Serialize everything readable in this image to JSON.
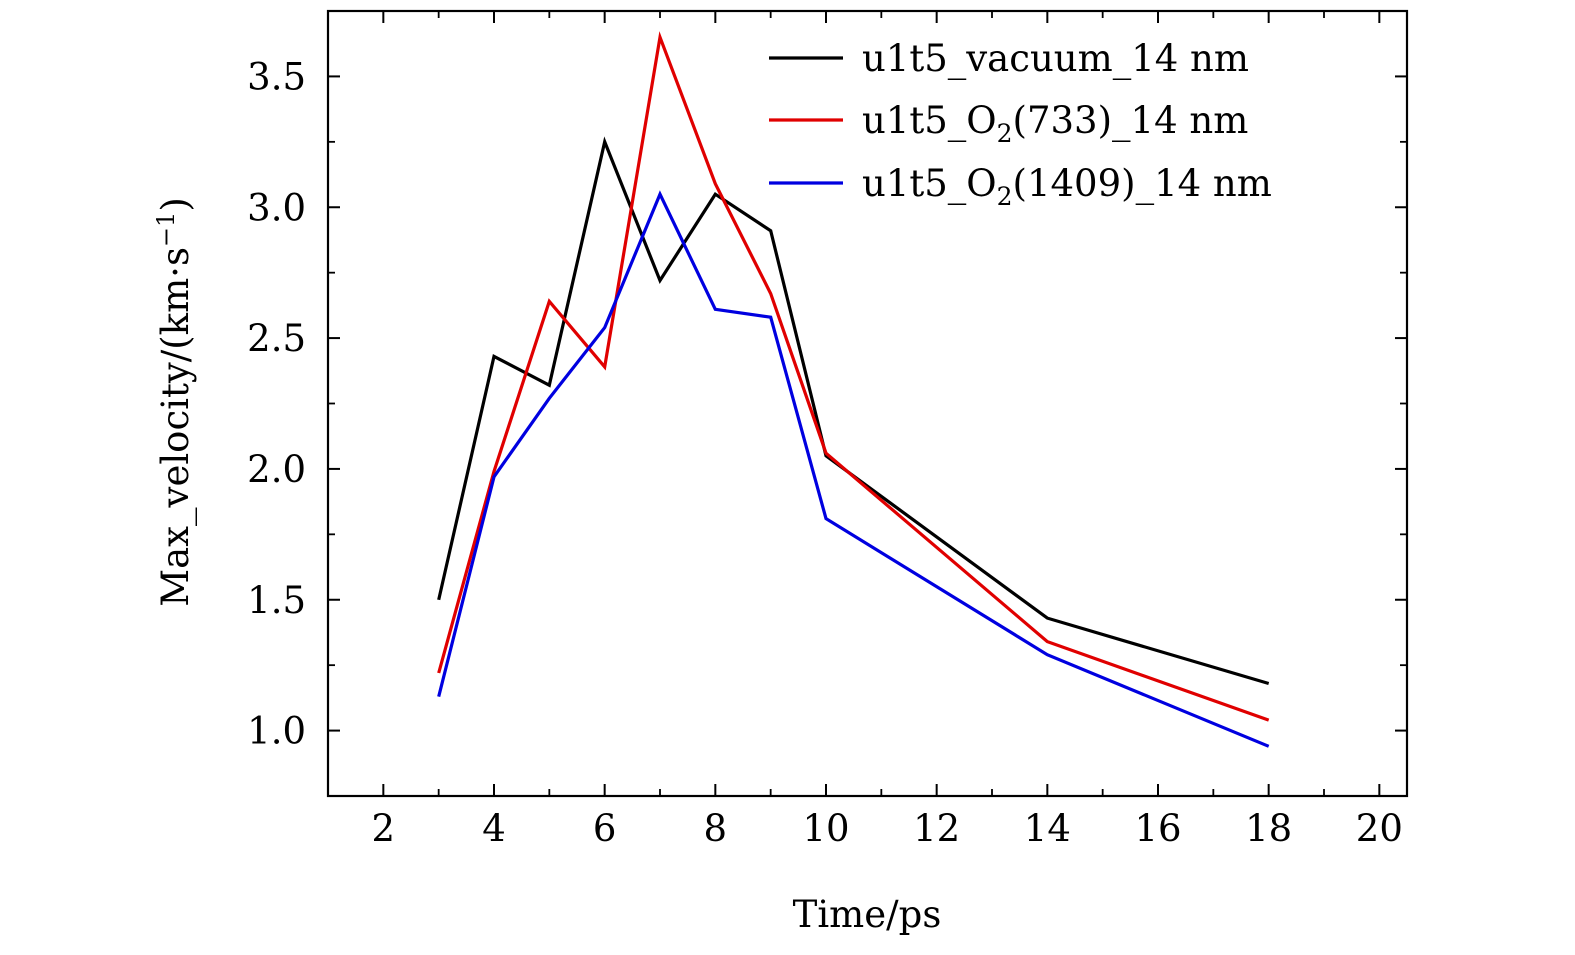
{
  "chart_data": {
    "type": "line",
    "title": "",
    "xlabel": "Time/ps",
    "ylabel": "Max_velocity/(km·s",
    "ylabel_sup": "−1",
    "ylabel_end": ")",
    "xlim": [
      1,
      20.5
    ],
    "ylim": [
      0.75,
      3.75
    ],
    "xticks": [
      2,
      4,
      6,
      8,
      10,
      12,
      14,
      16,
      18,
      20
    ],
    "yticks": [
      1.0,
      1.5,
      2.0,
      2.5,
      3.0,
      3.5
    ],
    "yticklabels": [
      "1.0",
      "1.5",
      "2.0",
      "2.5",
      "3.0",
      "3.5"
    ],
    "grid": false,
    "legend_position": "top-right",
    "series": [
      {
        "name": "u1t5_vacuum_14 nm",
        "label_pre": "u1t5_vacuum_14 nm",
        "label_sub": "",
        "label_post": "",
        "color": "#000000",
        "x": [
          3,
          4,
          5,
          6,
          7,
          8,
          9,
          10,
          14,
          18
        ],
        "y": [
          1.5,
          2.43,
          2.32,
          3.25,
          2.72,
          3.05,
          2.91,
          2.05,
          1.43,
          1.18
        ]
      },
      {
        "name": "u1t5_O2(733)_14 nm",
        "label_pre": "u1t5_O",
        "label_sub": "2",
        "label_post": "(733)_14 nm",
        "color": "#e00000",
        "x": [
          3,
          4,
          5,
          6,
          7,
          8,
          9,
          10,
          14,
          18
        ],
        "y": [
          1.22,
          1.99,
          2.64,
          2.39,
          3.65,
          3.09,
          2.67,
          2.06,
          1.34,
          1.04
        ]
      },
      {
        "name": "u1t5_O2(1409)_14 nm",
        "label_pre": "u1t5_O",
        "label_sub": "2",
        "label_post": "(1409)_14 nm",
        "color": "#0000e0",
        "x": [
          3,
          4,
          5,
          6,
          7,
          8,
          9,
          10,
          14,
          18
        ],
        "y": [
          1.13,
          1.97,
          2.27,
          2.54,
          3.05,
          2.61,
          2.58,
          1.81,
          1.29,
          0.94
        ]
      }
    ]
  }
}
